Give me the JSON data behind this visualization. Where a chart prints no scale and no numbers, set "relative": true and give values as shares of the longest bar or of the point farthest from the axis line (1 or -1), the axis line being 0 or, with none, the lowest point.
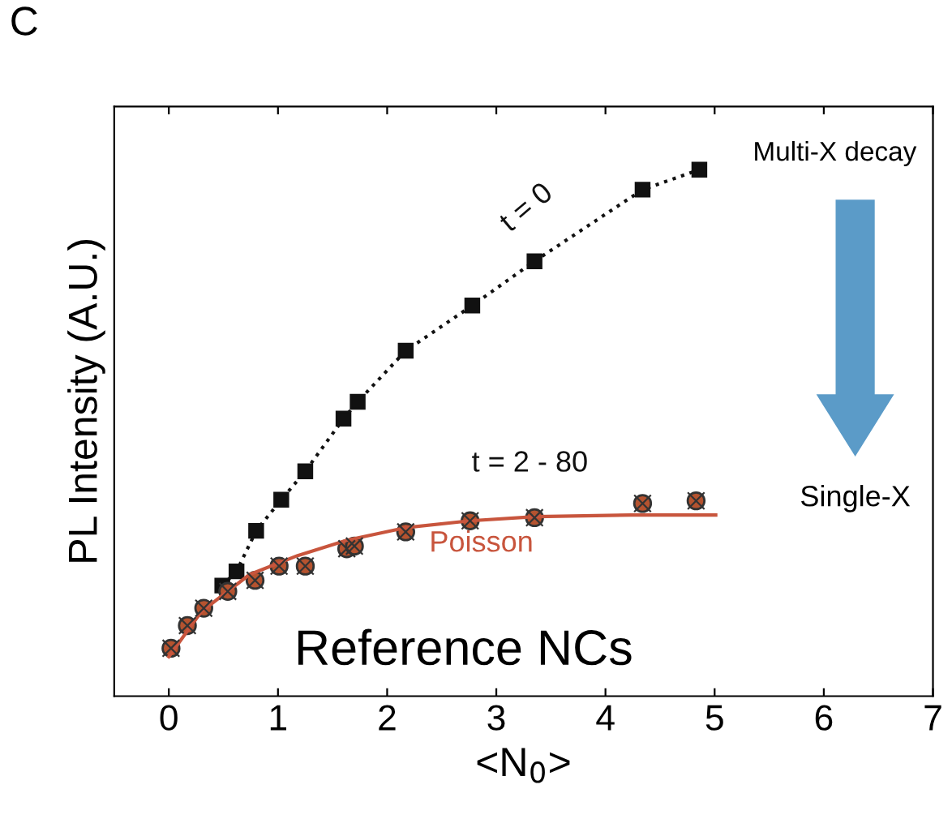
{
  "chart_data": {
    "type": "line",
    "relative": true,
    "xlabel": "<N$_{0}$>",
    "ylabel": "PL Intensity (A.U.)",
    "xlim": [
      -0.5,
      7
    ],
    "xticks": [
      0,
      1,
      2,
      3,
      4,
      5,
      6,
      7
    ],
    "grid": false,
    "legend": false,
    "annotations": [
      "C",
      "Multi-X decay",
      "Single-X",
      "Reference NCs"
    ],
    "series": [
      {
        "name": "t = 0",
        "color": "#111111",
        "marker": "square",
        "line_style": "dotted",
        "x": [
          0.49,
          0.62,
          0.8,
          1.03,
          1.25,
          1.6,
          1.73,
          2.17,
          2.78,
          3.35,
          4.34,
          4.86
        ],
        "values": [
          0.21,
          0.237,
          0.314,
          0.373,
          0.427,
          0.527,
          0.559,
          0.656,
          0.742,
          0.826,
          0.962,
          1.0
        ]
      },
      {
        "name": "t = 2 - 80",
        "type": "scatter",
        "color": "#b5532f",
        "marker": "circle",
        "x": [
          0.02,
          0.17,
          0.32,
          0.54,
          0.79,
          1.01,
          1.25,
          1.63,
          1.7,
          2.17,
          2.76,
          3.35,
          4.34,
          4.83
        ],
        "values": [
          0.091,
          0.134,
          0.167,
          0.199,
          0.22,
          0.247,
          0.247,
          0.28,
          0.285,
          0.312,
          0.333,
          0.339,
          0.366,
          0.371
        ]
      },
      {
        "name": "Poisson",
        "color": "#c8553d",
        "marker": "none",
        "line_style": "solid",
        "x": [
          0,
          0.3,
          0.74,
          1.18,
          1.63,
          2.17,
          2.76,
          3.36,
          4.24,
          5.01
        ],
        "values": [
          0.075,
          0.161,
          0.231,
          0.267,
          0.296,
          0.32,
          0.333,
          0.341,
          0.344,
          0.344
        ]
      }
    ]
  }
}
